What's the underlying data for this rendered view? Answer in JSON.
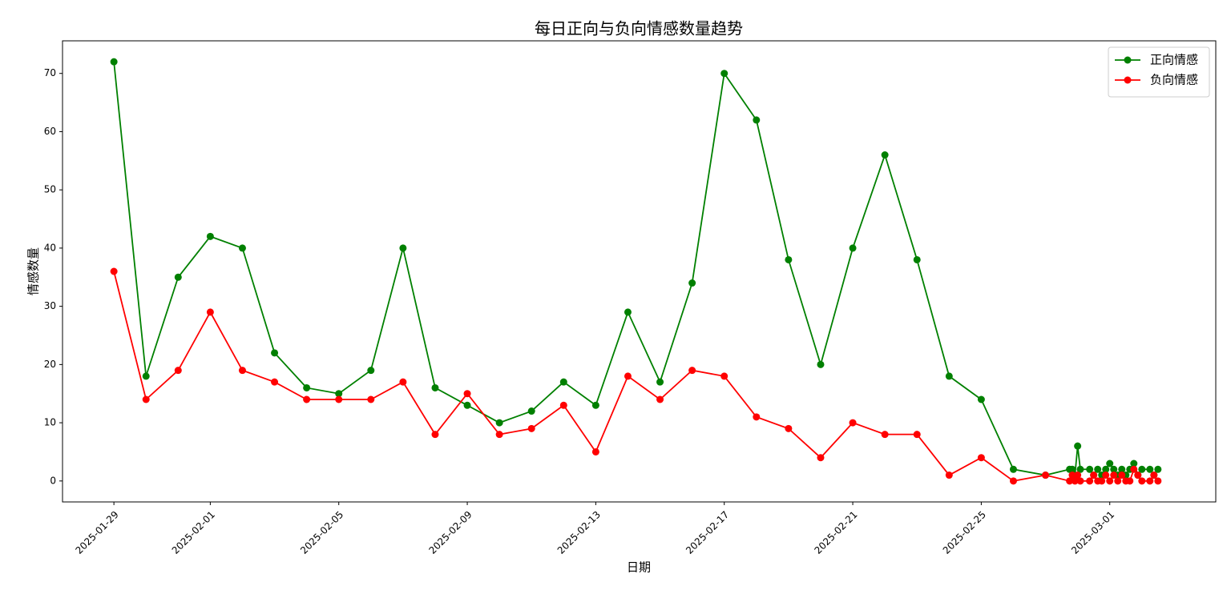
{
  "chart_data": {
    "type": "line",
    "title": "每日正向与负向情感数量趋势",
    "x_label": "日期",
    "y_label": "情感数量",
    "x": [
      "2025-01-29",
      "2025-01-30",
      "2025-01-31",
      "2025-02-01",
      "2025-02-02",
      "2025-02-03",
      "2025-02-04",
      "2025-02-05",
      "2025-02-06",
      "2025-02-07",
      "2025-02-08",
      "2025-02-09",
      "2025-02-10",
      "2025-02-11",
      "2025-02-12",
      "2025-02-13",
      "2025-02-14",
      "2025-02-15",
      "2025-02-16",
      "2025-02-17",
      "2025-02-18",
      "2025-02-19",
      "2025-02-20",
      "2025-02-21",
      "2025-02-22",
      "2025-02-23",
      "2025-02-24",
      "2025-02-25",
      "2025-02-26",
      "2025-02-27",
      "2025-02-27T18:00",
      "2025-02-27T20:00",
      "2025-02-27T22:00",
      "2025-02-28T00:00",
      "2025-02-28T02:00",
      "2025-02-28T09:00",
      "2025-02-28T12:00",
      "2025-02-28T15:00",
      "2025-02-28T18:00",
      "2025-02-28T21:00",
      "2025-03-01T00:00",
      "2025-03-01T03:00",
      "2025-03-01T06:00",
      "2025-03-01T09:00",
      "2025-03-01T12:00",
      "2025-03-01T15:00",
      "2025-03-01T18:00",
      "2025-03-01T21:00",
      "2025-03-02T00:00",
      "2025-03-02T06:00",
      "2025-03-02T09:00",
      "2025-03-02T12:00"
    ],
    "series": [
      {
        "name": "正向情感",
        "color": "#008000",
        "values": [
          72,
          18,
          35,
          42,
          40,
          22,
          16,
          15,
          19,
          40,
          16,
          13,
          10,
          12,
          17,
          13,
          29,
          17,
          34,
          70,
          62,
          38,
          20,
          40,
          56,
          38,
          18,
          14,
          2,
          1,
          2,
          2,
          1,
          6,
          2,
          2,
          1,
          2,
          1,
          2,
          3,
          2,
          1,
          2,
          1,
          2,
          3,
          1,
          2,
          2,
          1,
          2
        ]
      },
      {
        "name": "负向情感",
        "color": "#ff0000",
        "values": [
          36,
          14,
          19,
          29,
          19,
          17,
          14,
          14,
          14,
          17,
          8,
          15,
          8,
          9,
          13,
          5,
          18,
          14,
          19,
          18,
          11,
          9,
          4,
          10,
          8,
          8,
          1,
          4,
          0,
          1,
          0,
          1,
          0,
          1,
          0,
          0,
          1,
          0,
          0,
          1,
          0,
          1,
          0,
          1,
          0,
          0,
          2,
          1,
          0,
          0,
          1,
          0
        ]
      }
    ],
    "xlim": [
      "2025-01-27T09:36",
      "2025-03-04T07:12"
    ],
    "xticks": [
      "2025-01-29",
      "2025-02-01",
      "2025-02-05",
      "2025-02-09",
      "2025-02-13",
      "2025-02-17",
      "2025-02-21",
      "2025-02-25",
      "2025-03-01"
    ],
    "ylim": [
      -3.6,
      75.6
    ],
    "yticks": [
      0,
      10,
      20,
      30,
      40,
      50,
      60,
      70
    ],
    "legend": "upper right",
    "marker": "circle"
  }
}
